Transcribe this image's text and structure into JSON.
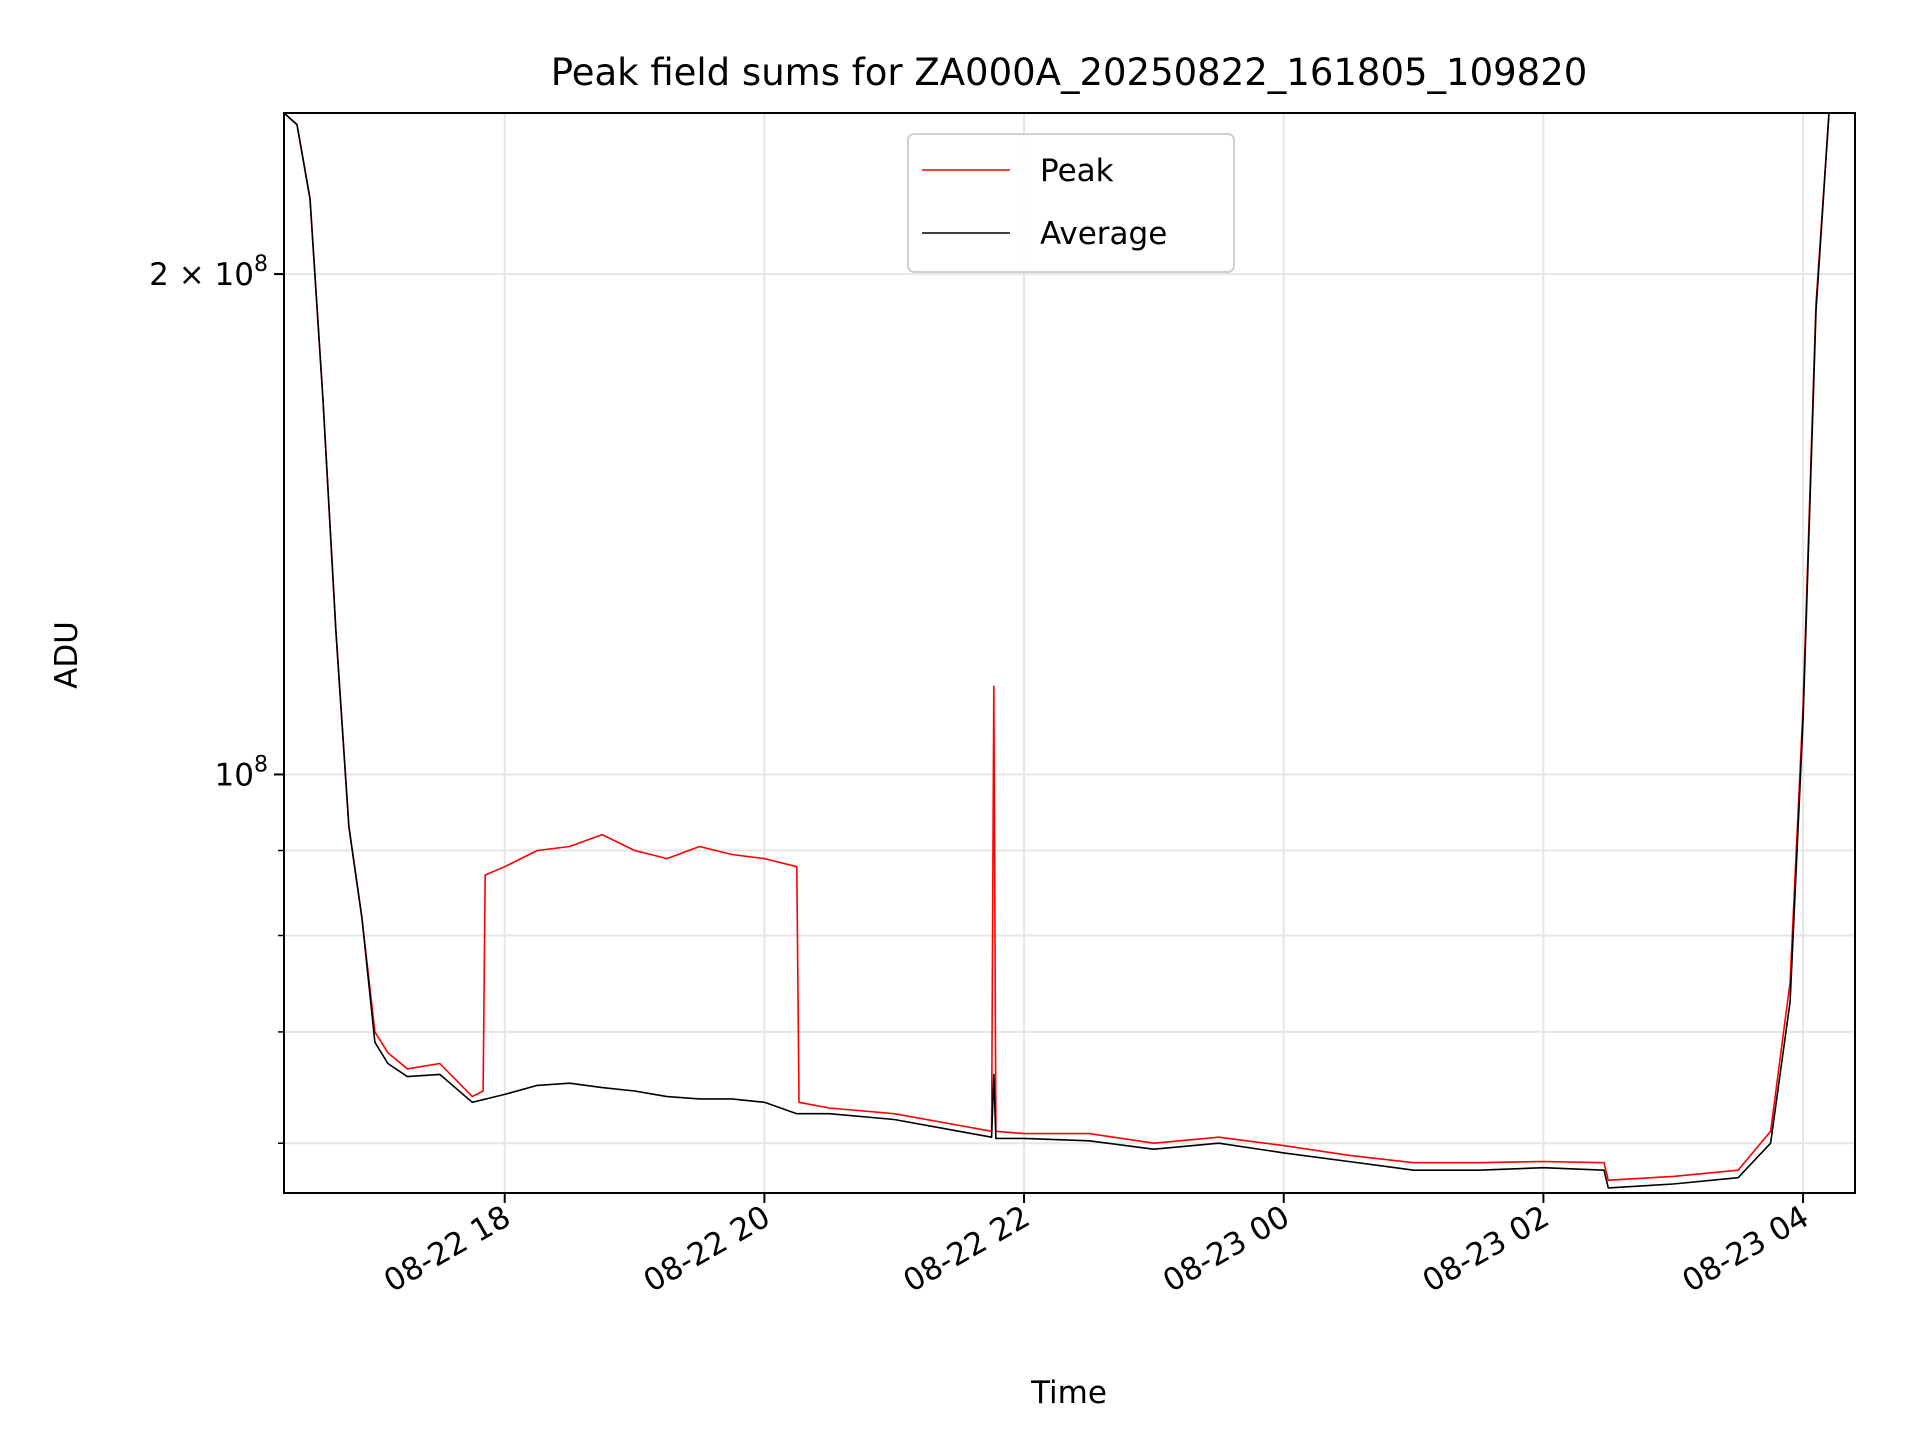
{
  "chart_data": {
    "type": "line",
    "title": "Peak field sums for ZA000A_20250822_161805_109820",
    "xlabel": "Time",
    "ylabel": "ADU",
    "xscale": "time",
    "yscale": "log",
    "grid": true,
    "legend_position": "upper center",
    "xlim": [
      "2025-08-22 16:18",
      "2025-08-23 04:24"
    ],
    "ylim": [
      56000000,
      250000000
    ],
    "x_ticks": [
      {
        "value": "2025-08-22 18:00",
        "label": "08-22 18"
      },
      {
        "value": "2025-08-22 20:00",
        "label": "08-22 20"
      },
      {
        "value": "2025-08-22 22:00",
        "label": "08-22 22"
      },
      {
        "value": "2025-08-23 00:00",
        "label": "08-23 00"
      },
      {
        "value": "2025-08-23 02:00",
        "label": "08-23 02"
      },
      {
        "value": "2025-08-23 04:00",
        "label": "08-23 04"
      }
    ],
    "y_major_ticks": [
      {
        "value": 100000000,
        "label_base": "10",
        "label_exp": "8"
      },
      {
        "value": 200000000,
        "label_base": "2 × 10",
        "label_exp": "8"
      }
    ],
    "y_minor_ticks": [
      60000000,
      70000000,
      80000000,
      90000000
    ],
    "series": [
      {
        "name": "Peak",
        "color": "#ff0000",
        "points": [
          [
            "2025-08-22 16:18",
            250000000
          ],
          [
            "2025-08-22 16:24",
            246000000
          ],
          [
            "2025-08-22 16:30",
            222000000
          ],
          [
            "2025-08-22 16:36",
            168000000
          ],
          [
            "2025-08-22 16:42",
            122000000
          ],
          [
            "2025-08-22 16:48",
            93000000
          ],
          [
            "2025-08-22 16:54",
            82000000
          ],
          [
            "2025-08-22 17:00",
            70000000
          ],
          [
            "2025-08-22 17:06",
            68000000
          ],
          [
            "2025-08-22 17:15",
            66500000
          ],
          [
            "2025-08-22 17:30",
            67000000
          ],
          [
            "2025-08-22 17:45",
            64000000
          ],
          [
            "2025-08-22 17:50",
            64500000
          ],
          [
            "2025-08-22 17:51",
            87000000
          ],
          [
            "2025-08-22 18:00",
            88000000
          ],
          [
            "2025-08-22 18:15",
            90000000
          ],
          [
            "2025-08-22 18:30",
            90500000
          ],
          [
            "2025-08-22 18:45",
            92000000
          ],
          [
            "2025-08-22 19:00",
            90000000
          ],
          [
            "2025-08-22 19:15",
            89000000
          ],
          [
            "2025-08-22 19:30",
            90500000
          ],
          [
            "2025-08-22 19:45",
            89500000
          ],
          [
            "2025-08-22 20:00",
            89000000
          ],
          [
            "2025-08-22 20:15",
            88000000
          ],
          [
            "2025-08-22 20:16",
            63500000
          ],
          [
            "2025-08-22 20:30",
            63000000
          ],
          [
            "2025-08-22 21:00",
            62500000
          ],
          [
            "2025-08-22 21:30",
            61500000
          ],
          [
            "2025-08-22 21:45",
            61000000
          ],
          [
            "2025-08-22 21:46",
            113000000
          ],
          [
            "2025-08-22 21:47",
            61000000
          ],
          [
            "2025-08-22 22:00",
            60800000
          ],
          [
            "2025-08-22 22:30",
            60800000
          ],
          [
            "2025-08-22 23:00",
            60000000
          ],
          [
            "2025-08-22 23:30",
            60500000
          ],
          [
            "2025-08-23 00:00",
            59800000
          ],
          [
            "2025-08-23 00:30",
            59000000
          ],
          [
            "2025-08-23 01:00",
            58400000
          ],
          [
            "2025-08-23 01:30",
            58400000
          ],
          [
            "2025-08-23 02:00",
            58500000
          ],
          [
            "2025-08-23 02:28",
            58400000
          ],
          [
            "2025-08-23 02:30",
            57000000
          ],
          [
            "2025-08-23 03:00",
            57300000
          ],
          [
            "2025-08-23 03:30",
            57800000
          ],
          [
            "2025-08-23 03:45",
            61000000
          ],
          [
            "2025-08-23 03:54",
            75000000
          ],
          [
            "2025-08-23 04:00",
            110000000
          ],
          [
            "2025-08-23 04:06",
            192000000
          ],
          [
            "2025-08-23 04:12",
            250000000
          ],
          [
            "2025-08-23 04:24",
            250000000
          ]
        ]
      },
      {
        "name": "Average",
        "color": "#000000",
        "points": [
          [
            "2025-08-22 16:18",
            250000000
          ],
          [
            "2025-08-22 16:24",
            246000000
          ],
          [
            "2025-08-22 16:30",
            222000000
          ],
          [
            "2025-08-22 16:36",
            168000000
          ],
          [
            "2025-08-22 16:42",
            122000000
          ],
          [
            "2025-08-22 16:48",
            93000000
          ],
          [
            "2025-08-22 16:54",
            82000000
          ],
          [
            "2025-08-22 17:00",
            69000000
          ],
          [
            "2025-08-22 17:06",
            67000000
          ],
          [
            "2025-08-22 17:15",
            65800000
          ],
          [
            "2025-08-22 17:30",
            66000000
          ],
          [
            "2025-08-22 17:45",
            63500000
          ],
          [
            "2025-08-22 18:00",
            64200000
          ],
          [
            "2025-08-22 18:15",
            65000000
          ],
          [
            "2025-08-22 18:30",
            65200000
          ],
          [
            "2025-08-22 18:45",
            64800000
          ],
          [
            "2025-08-22 19:00",
            64500000
          ],
          [
            "2025-08-22 19:15",
            64000000
          ],
          [
            "2025-08-22 19:30",
            63800000
          ],
          [
            "2025-08-22 19:45",
            63800000
          ],
          [
            "2025-08-22 20:00",
            63500000
          ],
          [
            "2025-08-22 20:15",
            62500000
          ],
          [
            "2025-08-22 20:30",
            62500000
          ],
          [
            "2025-08-22 21:00",
            62000000
          ],
          [
            "2025-08-22 21:30",
            61000000
          ],
          [
            "2025-08-22 21:45",
            60500000
          ],
          [
            "2025-08-22 21:46",
            66000000
          ],
          [
            "2025-08-22 21:47",
            60400000
          ],
          [
            "2025-08-22 22:00",
            60400000
          ],
          [
            "2025-08-22 22:30",
            60200000
          ],
          [
            "2025-08-22 23:00",
            59500000
          ],
          [
            "2025-08-22 23:30",
            60000000
          ],
          [
            "2025-08-23 00:00",
            59200000
          ],
          [
            "2025-08-23 00:30",
            58500000
          ],
          [
            "2025-08-23 01:00",
            57800000
          ],
          [
            "2025-08-23 01:30",
            57800000
          ],
          [
            "2025-08-23 02:00",
            58000000
          ],
          [
            "2025-08-23 02:28",
            57800000
          ],
          [
            "2025-08-23 02:30",
            56400000
          ],
          [
            "2025-08-23 03:00",
            56700000
          ],
          [
            "2025-08-23 03:30",
            57200000
          ],
          [
            "2025-08-23 03:45",
            60000000
          ],
          [
            "2025-08-23 03:54",
            73000000
          ],
          [
            "2025-08-23 04:00",
            108000000
          ],
          [
            "2025-08-23 04:06",
            190000000
          ],
          [
            "2025-08-23 04:12",
            250000000
          ],
          [
            "2025-08-23 04:24",
            250000000
          ]
        ]
      }
    ]
  }
}
